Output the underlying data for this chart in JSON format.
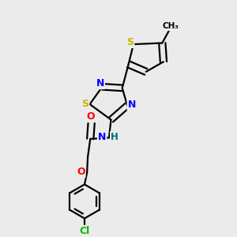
{
  "bg_color": "#ebebeb",
  "bond_color": "#000000",
  "atom_colors": {
    "S": "#c8b400",
    "N": "#0000ff",
    "O": "#ff0000",
    "Cl": "#00bb00",
    "C": "#000000",
    "H": "#007070"
  },
  "line_width": 1.6,
  "figsize": [
    3.0,
    3.0
  ],
  "dpi": 100
}
